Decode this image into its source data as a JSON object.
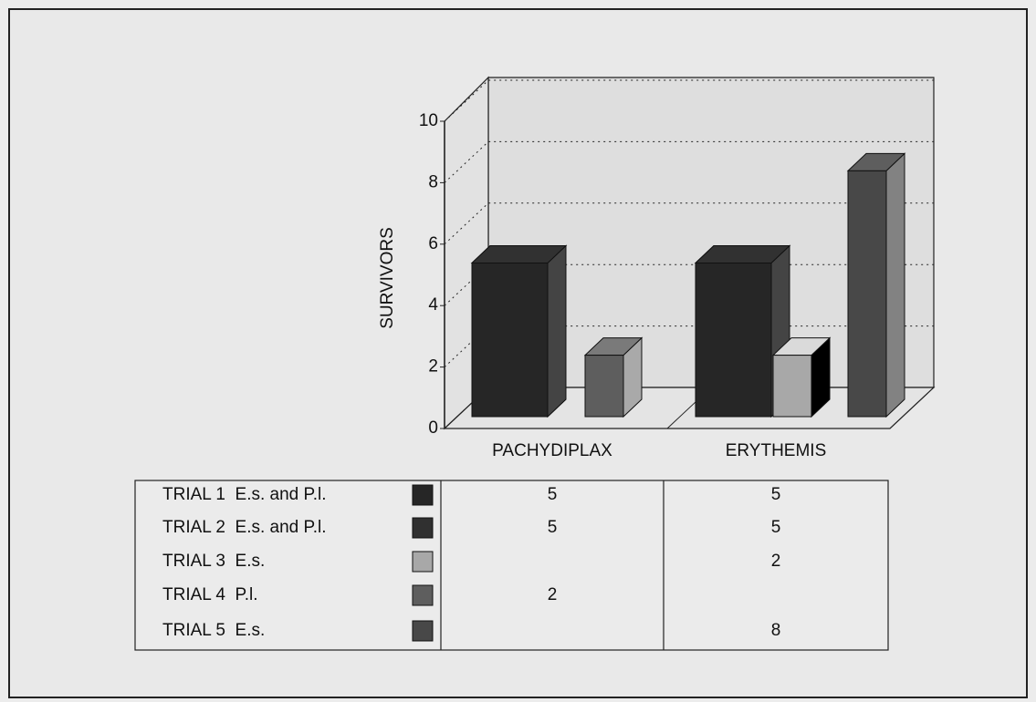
{
  "chart_data": {
    "type": "bar3d",
    "y_label": "SURVIVORS",
    "categories": [
      "PACHYDIPLAX",
      "ERYTHEMIS"
    ],
    "series": [
      {
        "name": "TRIAL 1  E.s. and P.l.",
        "color": "#262626",
        "values": [
          5,
          5
        ]
      },
      {
        "name": "TRIAL 2  E.s. and P.l.",
        "color": "#303030",
        "values": [
          5,
          5
        ]
      },
      {
        "name": "TRIAL 3  E.s.",
        "color": "#a8a8a8",
        "values": [
          null,
          2
        ]
      },
      {
        "name": "TRIAL 4  P.l.",
        "color": "#5e5e5e",
        "values": [
          2,
          null
        ]
      },
      {
        "name": "TRIAL 5  E.s.",
        "color": "#484848",
        "values": [
          null,
          8
        ]
      }
    ],
    "ylim": [
      0,
      10
    ],
    "yticks": [
      0,
      2,
      4,
      6,
      8,
      10
    ],
    "grid": true
  }
}
